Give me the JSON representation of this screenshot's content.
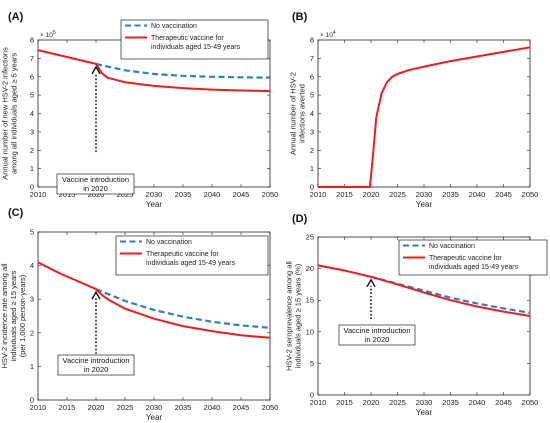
{
  "chart_data": [
    {
      "type": "line",
      "panel_label": "(A)",
      "title": "",
      "xlabel": "Year",
      "ylabel": [
        "Annual number of new HSV-2 infections",
        "among all individuals aged ≥ 5 years"
      ],
      "xlim": [
        2010,
        2050
      ],
      "ylim": [
        0,
        8
      ],
      "y_multiplier": "× 10^5",
      "x_ticks": [
        2010,
        2015,
        2020,
        2025,
        2030,
        2035,
        2040,
        2045,
        2050
      ],
      "y_ticks": [
        0,
        1,
        2,
        3,
        4,
        5,
        6,
        7,
        8
      ],
      "legend_position": "top-right",
      "series": [
        {
          "name": "No vaccination",
          "style": "dashed",
          "color": "#2a7fc6",
          "x": [
            2020,
            2022,
            2025,
            2030,
            2035,
            2040,
            2045,
            2050
          ],
          "y": [
            6.7,
            6.55,
            6.35,
            6.15,
            6.05,
            6.0,
            5.97,
            5.95
          ]
        },
        {
          "name": [
            "Therapeutic vaccine for",
            "individuals aged 15-49 years"
          ],
          "style": "solid",
          "color": "#ee1c1c",
          "x": [
            2010,
            2012,
            2014,
            2016,
            2018,
            2020,
            2021,
            2022,
            2025,
            2030,
            2035,
            2040,
            2045,
            2050
          ],
          "y": [
            7.45,
            7.3,
            7.15,
            7.0,
            6.85,
            6.7,
            6.2,
            5.95,
            5.7,
            5.5,
            5.38,
            5.3,
            5.25,
            5.22
          ]
        }
      ],
      "annotation": {
        "lines": [
          "Vaccine introduction",
          "in 2020"
        ],
        "x": 2020,
        "arrow_from": 1.9,
        "arrow_to": 6.7
      }
    },
    {
      "type": "line",
      "panel_label": "(B)",
      "title": "",
      "xlabel": "Year",
      "ylabel": [
        "Annual number of HSV-2",
        "infections averted"
      ],
      "xlim": [
        2010,
        2050
      ],
      "ylim": [
        0,
        8
      ],
      "y_multiplier": "× 10^4",
      "x_ticks": [
        2010,
        2015,
        2020,
        2025,
        2030,
        2035,
        2040,
        2045,
        2050
      ],
      "y_ticks": [
        0,
        1,
        2,
        3,
        4,
        5,
        6,
        7,
        8
      ],
      "series": [
        {
          "name": "",
          "style": "solid",
          "color": "#ee1c1c",
          "x": [
            2010,
            2019.8,
            2020.3,
            2021,
            2022,
            2023,
            2024,
            2025,
            2027,
            2030,
            2035,
            2040,
            2045,
            2050
          ],
          "y": [
            0,
            0,
            1.5,
            3.8,
            5.1,
            5.7,
            6.0,
            6.15,
            6.35,
            6.55,
            6.85,
            7.1,
            7.35,
            7.6
          ]
        }
      ]
    },
    {
      "type": "line",
      "panel_label": "(C)",
      "title": "",
      "xlabel": "Year",
      "ylabel": [
        "HSV-2 incidence rate among all",
        "individuals aged ≥ 15 years",
        "(per 1,000 person-years)"
      ],
      "xlim": [
        2010,
        2050
      ],
      "ylim": [
        0,
        5
      ],
      "x_ticks": [
        2010,
        2015,
        2020,
        2025,
        2030,
        2035,
        2040,
        2045,
        2050
      ],
      "y_ticks": [
        0,
        1,
        2,
        3,
        4,
        5
      ],
      "legend_position": "top-right",
      "series": [
        {
          "name": "No vaccination",
          "style": "dashed",
          "color": "#2a7fc6",
          "x": [
            2020,
            2025,
            2030,
            2035,
            2040,
            2045,
            2050
          ],
          "y": [
            3.3,
            2.95,
            2.68,
            2.48,
            2.33,
            2.22,
            2.15
          ]
        },
        {
          "name": [
            "Therapeutic vaccine for",
            "individuals aged 15-49 years"
          ],
          "style": "solid",
          "color": "#ee1c1c",
          "x": [
            2010,
            2012,
            2014,
            2016,
            2018,
            2020,
            2021,
            2022,
            2025,
            2030,
            2035,
            2040,
            2045,
            2050
          ],
          "y": [
            4.1,
            3.92,
            3.75,
            3.6,
            3.45,
            3.3,
            3.13,
            3.0,
            2.72,
            2.42,
            2.2,
            2.05,
            1.93,
            1.85
          ]
        }
      ],
      "annotation": {
        "lines": [
          "Vaccine introduction",
          "in 2020"
        ],
        "x": 2020,
        "arrow_from": 1.05,
        "arrow_to": 3.3
      }
    },
    {
      "type": "line",
      "panel_label": "(D)",
      "title": "",
      "xlabel": "Year",
      "ylabel": [
        "HSV-2 seroprevalence among all",
        "individuals aged ≥ 15 years (%)"
      ],
      "xlim": [
        2010,
        2050
      ],
      "ylim": [
        0,
        25
      ],
      "x_ticks": [
        2010,
        2015,
        2020,
        2025,
        2030,
        2035,
        2040,
        2045,
        2050
      ],
      "y_ticks": [
        0,
        5,
        10,
        15,
        20,
        25
      ],
      "legend_position": "top-right",
      "series": [
        {
          "name": "No vaccination",
          "style": "dashed",
          "color": "#2a7fc6",
          "x": [
            2020,
            2025,
            2030,
            2035,
            2040,
            2045,
            2050
          ],
          "y": [
            18.7,
            17.6,
            16.5,
            15.4,
            14.5,
            13.7,
            13.0
          ]
        },
        {
          "name": [
            "Therapeutic vaccine for",
            "individuals aged 15-49 years"
          ],
          "style": "solid",
          "color": "#ee1c1c",
          "x": [
            2010,
            2015,
            2020,
            2025,
            2030,
            2035,
            2040,
            2045,
            2050
          ],
          "y": [
            20.5,
            19.7,
            18.7,
            17.5,
            16.2,
            15.0,
            14.0,
            13.2,
            12.5
          ]
        }
      ],
      "annotation": {
        "lines": [
          "Vaccine introduction",
          "in 2020"
        ],
        "x": 2020,
        "arrow_from": 12.0,
        "arrow_to": 18.7
      }
    }
  ]
}
